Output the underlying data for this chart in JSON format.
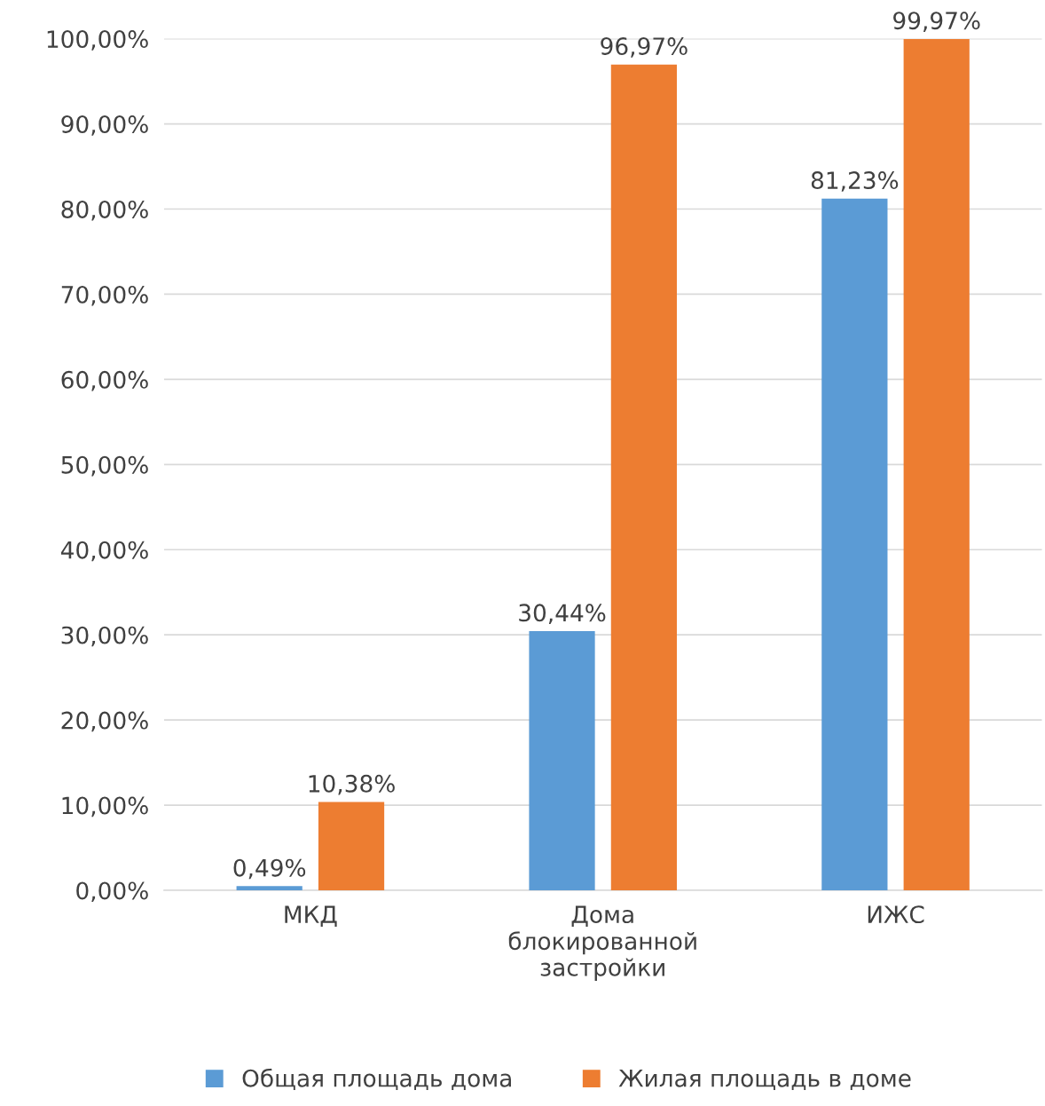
{
  "chart_data": {
    "type": "bar",
    "categories": [
      "МКД",
      "Дома\nблокированной\nзастройки",
      "ИЖС"
    ],
    "series": [
      {
        "name": "Общая площадь дома",
        "color": "#5b9bd5",
        "values": [
          0.49,
          30.44,
          81.23
        ],
        "value_labels": [
          "0,49%",
          "30,44%",
          "81,23%"
        ]
      },
      {
        "name": "Жилая площадь в доме",
        "color": "#ed7d31",
        "values": [
          10.38,
          96.97,
          99.97
        ],
        "value_labels": [
          "10,38%",
          "96,97%",
          "99,97%"
        ]
      }
    ],
    "ylim": [
      0,
      100
    ],
    "yticks": [
      {
        "value": 0,
        "label": "0,00%"
      },
      {
        "value": 10,
        "label": "10,00%"
      },
      {
        "value": 20,
        "label": "20,00%"
      },
      {
        "value": 30,
        "label": "30,00%"
      },
      {
        "value": 40,
        "label": "40,00%"
      },
      {
        "value": 50,
        "label": "50,00%"
      },
      {
        "value": 60,
        "label": "60,00%"
      },
      {
        "value": 70,
        "label": "70,00%"
      },
      {
        "value": 80,
        "label": "80,00%"
      },
      {
        "value": 90,
        "label": "90,00%"
      },
      {
        "value": 100,
        "label": "100,00%"
      }
    ],
    "grid": "y",
    "legend": "bottom"
  }
}
